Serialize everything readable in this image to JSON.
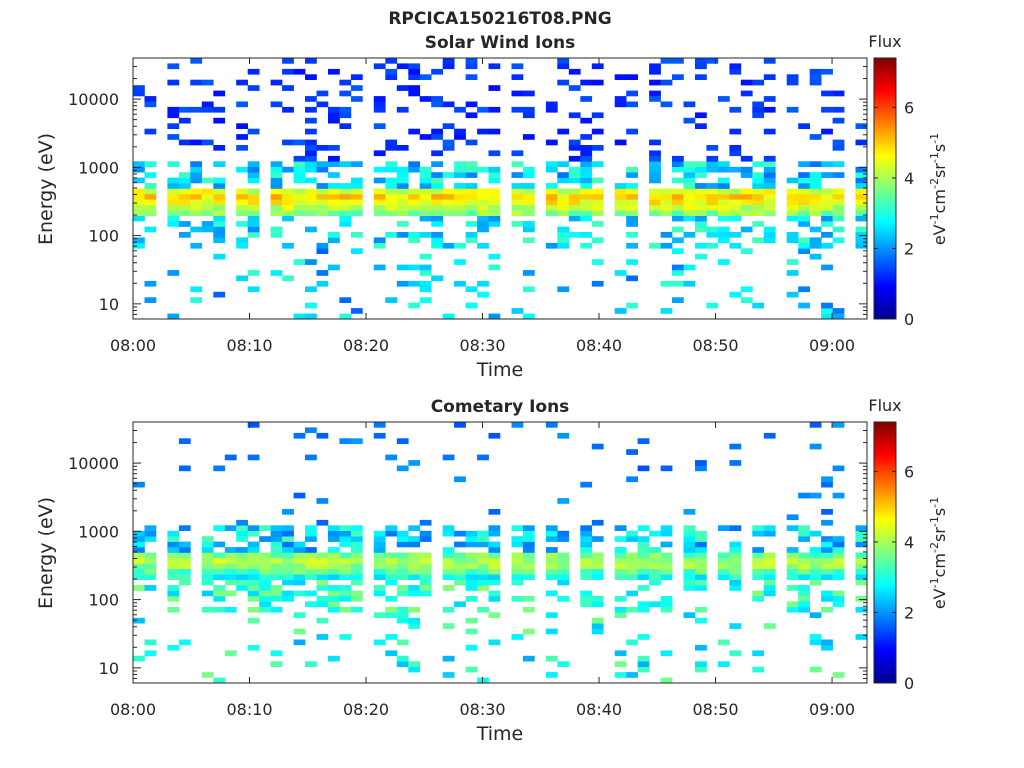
{
  "figure_title": "RPCICA150216T08.PNG",
  "colorbar": {
    "label": "Flux",
    "units_label": "eV-1cm-2sr-1s-1",
    "range": [
      0,
      7.4
    ],
    "ticks": [
      "0",
      "2",
      "4",
      "6"
    ]
  },
  "chart_data": [
    {
      "type": "heatmap",
      "title": "Solar Wind Ions",
      "xlabel": "Time",
      "ylabel": "Energy (eV)",
      "x_ticks": [
        "08:00",
        "08:10",
        "08:20",
        "08:30",
        "08:40",
        "08:50",
        "09:00"
      ],
      "y_ticks": [
        "10",
        "100",
        "1000",
        "10000"
      ],
      "y_scale": "log",
      "ylim": [
        6,
        40000
      ],
      "xlim": [
        "08:00",
        "09:03"
      ],
      "colorbar_label": "Flux",
      "colorbar_ticks": [
        0,
        2,
        4,
        6
      ],
      "features": {
        "main_band_energy_eV": [
          250,
          500
        ],
        "main_band_peak_flux": 5,
        "background_flux": 1
      }
    },
    {
      "type": "heatmap",
      "title": "Cometary Ions",
      "xlabel": "Time",
      "ylabel": "Energy (eV)",
      "x_ticks": [
        "08:00",
        "08:10",
        "08:20",
        "08:30",
        "08:40",
        "08:50",
        "09:00"
      ],
      "y_ticks": [
        "10",
        "100",
        "1000",
        "10000"
      ],
      "y_scale": "log",
      "ylim": [
        6,
        40000
      ],
      "xlim": [
        "08:00",
        "09:03"
      ],
      "colorbar_label": "Flux",
      "colorbar_ticks": [
        0,
        2,
        4,
        6
      ],
      "features": {
        "main_band_energy_eV": [
          250,
          500
        ],
        "main_band_peak_flux": 4.2,
        "background_flux": 1.5
      }
    }
  ]
}
